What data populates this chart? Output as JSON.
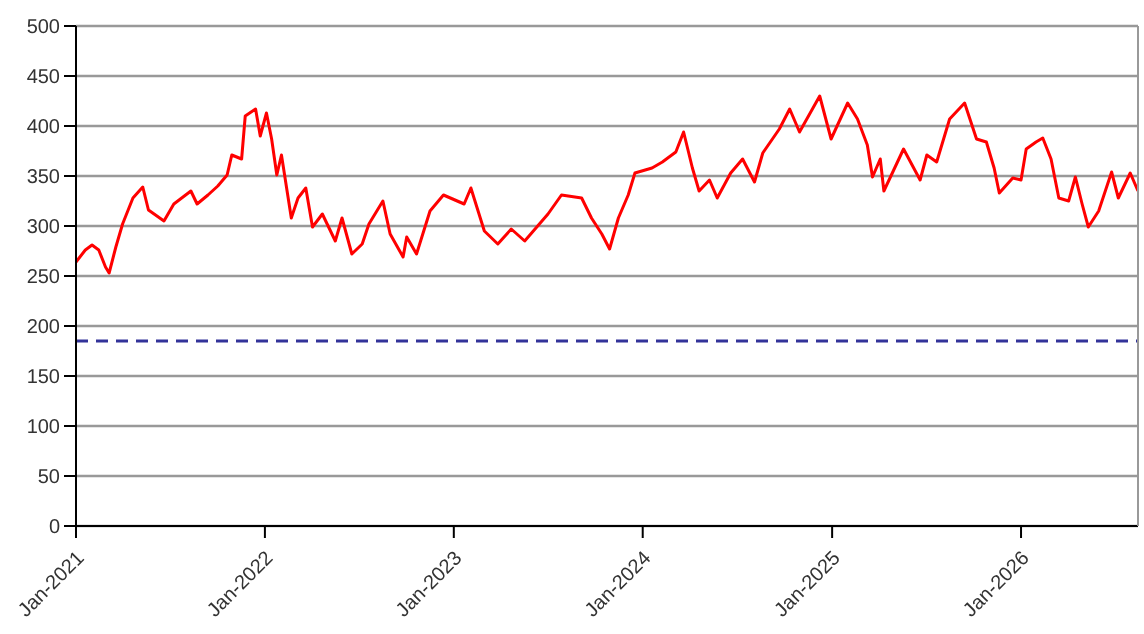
{
  "chart_data": {
    "type": "line",
    "x": [
      "2021-01-01",
      "2021-01-19",
      "2021-02-01",
      "2021-02-14",
      "2021-02-27",
      "2021-03-06",
      "2021-03-19",
      "2021-04-01",
      "2021-04-21",
      "2021-05-10",
      "2021-05-21",
      "2021-06-20",
      "2021-07-09",
      "2021-08-11",
      "2021-08-23",
      "2021-09-13",
      "2021-10-02",
      "2021-10-20",
      "2021-10-29",
      "2021-11-17",
      "2021-11-24",
      "2021-12-14",
      "2021-12-23",
      "2022-01-04",
      "2022-01-14",
      "2022-01-24",
      "2022-02-02",
      "2022-02-21",
      "2022-03-06",
      "2022-03-21",
      "2022-04-03",
      "2022-04-22",
      "2022-05-17",
      "2022-05-30",
      "2022-06-18",
      "2022-07-08",
      "2022-07-21",
      "2022-08-17",
      "2022-08-31",
      "2022-09-25",
      "2022-10-02",
      "2022-10-21",
      "2022-11-16",
      "2022-12-12",
      "2023-01-21",
      "2023-02-03",
      "2023-03-01",
      "2023-03-27",
      "2023-04-22",
      "2023-05-18",
      "2023-07-02",
      "2023-07-28",
      "2023-09-05",
      "2023-09-24",
      "2023-10-14",
      "2023-10-29",
      "2023-11-15",
      "2023-12-04",
      "2023-12-17",
      "2024-01-19",
      "2024-02-08",
      "2024-03-05",
      "2024-03-20",
      "2024-04-06",
      "2024-04-19",
      "2024-05-09",
      "2024-05-24",
      "2024-06-19",
      "2024-07-12",
      "2024-08-04",
      "2024-08-20",
      "2024-09-21",
      "2024-10-11",
      "2024-10-30",
      "2024-12-08",
      "2024-12-30",
      "2025-01-31",
      "2025-02-19",
      "2025-03-10",
      "2025-03-20",
      "2025-04-04",
      "2025-04-11",
      "2025-05-19",
      "2025-06-20",
      "2025-07-03",
      "2025-07-22",
      "2025-08-16",
      "2025-09-14",
      "2025-10-07",
      "2025-10-26",
      "2025-11-10",
      "2025-11-20",
      "2025-12-16",
      "2026-01-01",
      "2026-01-11",
      "2026-01-30",
      "2026-02-12",
      "2026-02-28",
      "2026-03-15",
      "2026-04-03",
      "2026-04-16",
      "2026-04-29",
      "2026-05-11",
      "2026-05-31",
      "2026-06-25",
      "2026-07-08",
      "2026-07-31",
      "2026-08-15"
    ],
    "series": [
      {
        "color": "#ff0000",
        "values": [
          264,
          276,
          281,
          276,
          259,
          253,
          279,
          302,
          328,
          339,
          316,
          305,
          322,
          335,
          322,
          331,
          340,
          351,
          371,
          367,
          410,
          417,
          390,
          413,
          387,
          351,
          371,
          308,
          328,
          338,
          299,
          312,
          285,
          308,
          272,
          282,
          302,
          325,
          292,
          269,
          289,
          272,
          315,
          331,
          322,
          338,
          295,
          282,
          297,
          285,
          312,
          331,
          328,
          308,
          292,
          277,
          308,
          331,
          353,
          358,
          364,
          374,
          394,
          358,
          335,
          346,
          328,
          353,
          367,
          344,
          373,
          397,
          417,
          394,
          430,
          387,
          423,
          407,
          381,
          349,
          367,
          335,
          377,
          346,
          371,
          364,
          407,
          423,
          387,
          384,
          358,
          333,
          348,
          346,
          377,
          384,
          388,
          367,
          328,
          325,
          349,
          322,
          299,
          315,
          354,
          328,
          353,
          335
        ]
      }
    ],
    "xlim": [
      "2021-01-01",
      "2026-08-15"
    ],
    "xticks": [
      {
        "value": "2021-01-01",
        "label": "Jan-2021"
      },
      {
        "value": "2022-01-01",
        "label": "Jan-2022"
      },
      {
        "value": "2023-01-01",
        "label": "Jan-2023"
      },
      {
        "value": "2024-01-01",
        "label": "Jan-2024"
      },
      {
        "value": "2025-01-01",
        "label": "Jan-2025"
      },
      {
        "value": "2026-01-01",
        "label": "Jan-2026"
      }
    ],
    "ylim": [
      0,
      500
    ],
    "yticks": [
      0,
      50,
      100,
      150,
      200,
      250,
      300,
      350,
      400,
      450,
      500
    ],
    "ref_lines": [
      {
        "axis": "y",
        "value": 185,
        "color": "#333399",
        "line_style": "dashed"
      }
    ],
    "grid": "y",
    "marker": "none",
    "line_style": "solid"
  }
}
